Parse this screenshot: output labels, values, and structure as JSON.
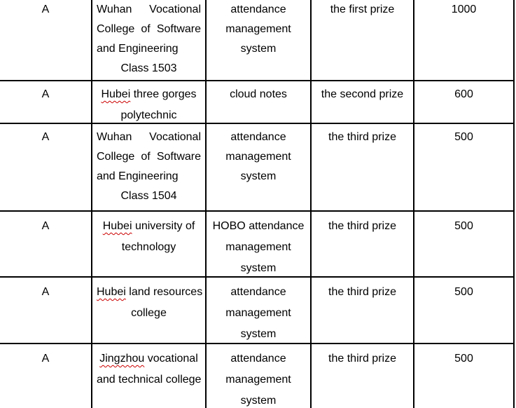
{
  "table": {
    "rows": [
      {
        "group": {
          "lines": [
            {
              "segs": [
                {
                  "t": "A"
                }
              ]
            }
          ]
        },
        "school": {
          "lines": [
            {
              "segs": [
                {
                  "t": "Wuhan Vocational"
                }
              ],
              "align": "between"
            },
            {
              "segs": [
                {
                  "t": "College of Software"
                }
              ],
              "align": "between"
            },
            {
              "segs": [
                {
                  "t": "and Engineering"
                }
              ],
              "align": "left"
            },
            {
              "segs": [
                {
                  "t": "Class 1503"
                }
              ]
            }
          ]
        },
        "work": {
          "lines": [
            {
              "segs": [
                {
                  "t": "attendance"
                }
              ]
            },
            {
              "segs": [
                {
                  "t": "management"
                }
              ]
            },
            {
              "segs": [
                {
                  "t": "system"
                }
              ]
            }
          ]
        },
        "prize": {
          "lines": [
            {
              "segs": [
                {
                  "t": "the first prize"
                }
              ]
            }
          ]
        },
        "bonus": {
          "lines": [
            {
              "segs": [
                {
                  "t": "1000"
                }
              ]
            }
          ]
        }
      },
      {
        "group": {
          "lines": [
            {
              "segs": [
                {
                  "t": "A"
                }
              ]
            }
          ]
        },
        "school": {
          "lines": [
            {
              "segs": [
                {
                  "t": "Hubei",
                  "mis": true
                },
                {
                  "t": " three gorges"
                }
              ]
            },
            {
              "segs": [
                {
                  "t": "polytechnic"
                }
              ]
            }
          ]
        },
        "work": {
          "lines": [
            {
              "segs": [
                {
                  "t": "cloud notes"
                }
              ]
            }
          ]
        },
        "prize": {
          "lines": [
            {
              "segs": [
                {
                  "t": "the second prize"
                }
              ]
            }
          ]
        },
        "bonus": {
          "lines": [
            {
              "segs": [
                {
                  "t": "600"
                }
              ]
            }
          ]
        }
      },
      {
        "group": {
          "lines": [
            {
              "segs": [
                {
                  "t": "A"
                }
              ]
            }
          ]
        },
        "school": {
          "lines": [
            {
              "segs": [
                {
                  "t": "Wuhan Vocational"
                }
              ],
              "align": "between"
            },
            {
              "segs": [
                {
                  "t": "College of Software"
                }
              ],
              "align": "between"
            },
            {
              "segs": [
                {
                  "t": "and Engineering"
                }
              ],
              "align": "left"
            },
            {
              "segs": [
                {
                  "t": "Class 1504"
                }
              ]
            }
          ]
        },
        "work": {
          "lines": [
            {
              "segs": [
                {
                  "t": "attendance"
                }
              ]
            },
            {
              "segs": [
                {
                  "t": "management"
                }
              ]
            },
            {
              "segs": [
                {
                  "t": "system"
                }
              ]
            }
          ]
        },
        "prize": {
          "lines": [
            {
              "segs": [
                {
                  "t": "the third prize"
                }
              ]
            }
          ]
        },
        "bonus": {
          "lines": [
            {
              "segs": [
                {
                  "t": "500"
                }
              ]
            }
          ]
        }
      },
      {
        "group": {
          "lines": [
            {
              "segs": [
                {
                  "t": "A"
                }
              ]
            }
          ]
        },
        "school": {
          "lines": [
            {
              "segs": [
                {
                  "t": "Hubei",
                  "mis": true
                },
                {
                  "t": " university of"
                }
              ]
            },
            {
              "segs": [
                {
                  "t": "technology"
                }
              ]
            }
          ]
        },
        "work": {
          "lines": [
            {
              "segs": [
                {
                  "t": "HOBO attendance"
                }
              ]
            },
            {
              "segs": [
                {
                  "t": "management"
                }
              ]
            },
            {
              "segs": [
                {
                  "t": "system"
                }
              ]
            }
          ]
        },
        "prize": {
          "lines": [
            {
              "segs": [
                {
                  "t": "the third prize"
                }
              ]
            }
          ]
        },
        "bonus": {
          "lines": [
            {
              "segs": [
                {
                  "t": "500"
                }
              ]
            }
          ]
        }
      },
      {
        "group": {
          "lines": [
            {
              "segs": [
                {
                  "t": "A"
                }
              ]
            }
          ]
        },
        "school": {
          "lines": [
            {
              "segs": [
                {
                  "t": "Hubei",
                  "mis": true
                },
                {
                  "t": " land resources"
                }
              ]
            },
            {
              "segs": [
                {
                  "t": "college"
                }
              ]
            }
          ]
        },
        "work": {
          "lines": [
            {
              "segs": [
                {
                  "t": "attendance"
                }
              ]
            },
            {
              "segs": [
                {
                  "t": "management"
                }
              ]
            },
            {
              "segs": [
                {
                  "t": "system"
                }
              ]
            }
          ]
        },
        "prize": {
          "lines": [
            {
              "segs": [
                {
                  "t": "the third prize"
                }
              ]
            }
          ]
        },
        "bonus": {
          "lines": [
            {
              "segs": [
                {
                  "t": "500"
                }
              ]
            }
          ]
        }
      },
      {
        "group": {
          "lines": [
            {
              "segs": [
                {
                  "t": "A"
                }
              ]
            }
          ]
        },
        "school": {
          "lines": [
            {
              "segs": [
                {
                  "t": "Jingzhou",
                  "mis": true
                },
                {
                  "t": " vocational"
                }
              ]
            },
            {
              "segs": [
                {
                  "t": "and technical college"
                }
              ]
            }
          ]
        },
        "work": {
          "lines": [
            {
              "segs": [
                {
                  "t": "attendance"
                }
              ]
            },
            {
              "segs": [
                {
                  "t": "management"
                }
              ]
            },
            {
              "segs": [
                {
                  "t": "system"
                }
              ]
            }
          ]
        },
        "prize": {
          "lines": [
            {
              "segs": [
                {
                  "t": "the third prize"
                }
              ]
            }
          ]
        },
        "bonus": {
          "lines": [
            {
              "segs": [
                {
                  "t": "500"
                }
              ]
            }
          ]
        }
      }
    ],
    "colors": {
      "border": "#000000",
      "text": "#000000",
      "spellcheck_underline": "#cc0000",
      "background": "#ffffff"
    }
  }
}
